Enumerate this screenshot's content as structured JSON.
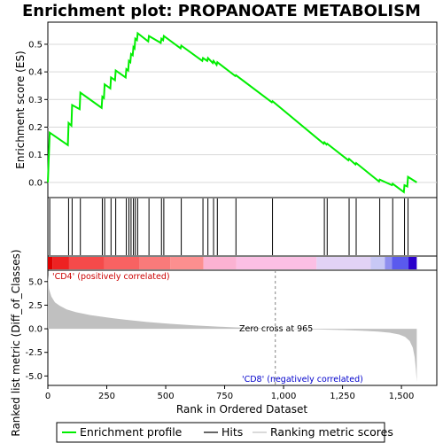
{
  "title": "Enrichment plot: PROPANOATE METABOLISM",
  "colors": {
    "enrichment_line": "#00ee00",
    "hit_line": "#000000",
    "metric_fill": "#c0c0c0",
    "pos_label": "#cc0000",
    "neg_label": "#0000cc",
    "zero_cross_line": "#808080"
  },
  "chart_data": [
    {
      "type": "line",
      "name": "enrichment-profile",
      "ylabel": "Enrichment score (ES)",
      "xlim": [
        0,
        1650
      ],
      "ylim": [
        -0.055,
        0.58
      ],
      "yticks": [
        0.0,
        0.1,
        0.2,
        0.3,
        0.4,
        0.5
      ],
      "ytick_labels": [
        "0.0",
        "0.1",
        "0.2",
        "0.3",
        "0.4",
        "0.5"
      ],
      "grid": true,
      "points": [
        [
          0,
          0.0
        ],
        [
          8,
          0.18
        ],
        [
          85,
          0.135
        ],
        [
          88,
          0.215
        ],
        [
          100,
          0.205
        ],
        [
          103,
          0.28
        ],
        [
          135,
          0.265
        ],
        [
          138,
          0.325
        ],
        [
          228,
          0.27
        ],
        [
          231,
          0.31
        ],
        [
          238,
          0.305
        ],
        [
          241,
          0.355
        ],
        [
          265,
          0.34
        ],
        [
          268,
          0.38
        ],
        [
          285,
          0.37
        ],
        [
          288,
          0.405
        ],
        [
          330,
          0.38
        ],
        [
          333,
          0.41
        ],
        [
          341,
          0.405
        ],
        [
          344,
          0.44
        ],
        [
          350,
          0.435
        ],
        [
          353,
          0.465
        ],
        [
          360,
          0.46
        ],
        [
          363,
          0.49
        ],
        [
          368,
          0.485
        ],
        [
          371,
          0.52
        ],
        [
          378,
          0.515
        ],
        [
          381,
          0.54
        ],
        [
          426,
          0.51
        ],
        [
          429,
          0.53
        ],
        [
          479,
          0.505
        ],
        [
          482,
          0.52
        ],
        [
          489,
          0.515
        ],
        [
          492,
          0.53
        ],
        [
          563,
          0.485
        ],
        [
          566,
          0.495
        ],
        [
          655,
          0.44
        ],
        [
          658,
          0.45
        ],
        [
          676,
          0.44
        ],
        [
          679,
          0.45
        ],
        [
          700,
          0.432
        ],
        [
          703,
          0.44
        ],
        [
          716,
          0.425
        ],
        [
          719,
          0.435
        ],
        [
          795,
          0.385
        ],
        [
          798,
          0.388
        ],
        [
          950,
          0.29
        ],
        [
          953,
          0.294
        ],
        [
          1170,
          0.14
        ],
        [
          1173,
          0.145
        ],
        [
          1182,
          0.137
        ],
        [
          1185,
          0.14
        ],
        [
          1275,
          0.08
        ],
        [
          1278,
          0.085
        ],
        [
          1305,
          0.065
        ],
        [
          1308,
          0.07
        ],
        [
          1405,
          0.003
        ],
        [
          1408,
          0.01
        ],
        [
          1460,
          -0.01
        ],
        [
          1463,
          -0.005
        ],
        [
          1510,
          -0.035
        ],
        [
          1513,
          -0.01
        ],
        [
          1525,
          -0.015
        ],
        [
          1528,
          0.02
        ],
        [
          1565,
          0.0
        ]
      ]
    },
    {
      "type": "hits",
      "name": "gene-hits",
      "xlim": [
        0,
        1650
      ],
      "x": [
        8,
        88,
        103,
        138,
        231,
        241,
        268,
        288,
        333,
        344,
        353,
        363,
        371,
        381,
        429,
        482,
        492,
        566,
        658,
        679,
        703,
        719,
        798,
        953,
        1173,
        1185,
        1278,
        1308,
        1408,
        1463,
        1513,
        1528
      ]
    },
    {
      "type": "heatmap",
      "name": "ranking-color-bar",
      "xlim": [
        0,
        1650
      ],
      "segments": [
        {
          "start": 0,
          "end": 20,
          "color": "#dd0000"
        },
        {
          "start": 20,
          "end": 90,
          "color": "#ee2222"
        },
        {
          "start": 90,
          "end": 240,
          "color": "#f54a4a"
        },
        {
          "start": 240,
          "end": 390,
          "color": "#f86262"
        },
        {
          "start": 390,
          "end": 520,
          "color": "#fa7a7a"
        },
        {
          "start": 520,
          "end": 660,
          "color": "#fc8f8f"
        },
        {
          "start": 660,
          "end": 800,
          "color": "#fbb2d2"
        },
        {
          "start": 800,
          "end": 1140,
          "color": "#fbbfe4"
        },
        {
          "start": 1140,
          "end": 1370,
          "color": "#e2d2f5"
        },
        {
          "start": 1370,
          "end": 1430,
          "color": "#c8c8f5"
        },
        {
          "start": 1430,
          "end": 1460,
          "color": "#8f8fef"
        },
        {
          "start": 1460,
          "end": 1530,
          "color": "#5a5aee"
        },
        {
          "start": 1530,
          "end": 1565,
          "color": "#2a00cc"
        }
      ]
    },
    {
      "type": "area",
      "name": "ranked-list-metric",
      "xlabel": "Rank in Ordered Dataset",
      "ylabel": "Ranked list metric (Diff_of_Classes)",
      "xlim": [
        0,
        1650
      ],
      "ylim": [
        -6.0,
        6.2
      ],
      "xticks": [
        0,
        250,
        500,
        750,
        1000,
        1250,
        1500
      ],
      "xtick_labels": [
        "0",
        "250",
        "500",
        "750",
        "1,000",
        "1,250",
        "1,500"
      ],
      "yticks": [
        -5.0,
        -2.5,
        0.0,
        2.5,
        5.0
      ],
      "ytick_labels": [
        "-5.0",
        "-2.5",
        "0.0",
        "2.5",
        "5.0"
      ],
      "points": [
        [
          0,
          5.7
        ],
        [
          5,
          4.2
        ],
        [
          15,
          3.4
        ],
        [
          30,
          2.8
        ],
        [
          50,
          2.45
        ],
        [
          80,
          2.05
        ],
        [
          120,
          1.75
        ],
        [
          180,
          1.45
        ],
        [
          250,
          1.2
        ],
        [
          330,
          0.95
        ],
        [
          420,
          0.72
        ],
        [
          520,
          0.52
        ],
        [
          620,
          0.36
        ],
        [
          720,
          0.23
        ],
        [
          820,
          0.12
        ],
        [
          900,
          0.05
        ],
        [
          965,
          0.0
        ],
        [
          1050,
          -0.04
        ],
        [
          1150,
          -0.08
        ],
        [
          1250,
          -0.13
        ],
        [
          1330,
          -0.2
        ],
        [
          1400,
          -0.3
        ],
        [
          1450,
          -0.42
        ],
        [
          1490,
          -0.6
        ],
        [
          1515,
          -0.85
        ],
        [
          1535,
          -1.3
        ],
        [
          1548,
          -2.0
        ],
        [
          1556,
          -3.0
        ],
        [
          1561,
          -4.2
        ],
        [
          1565,
          -5.6
        ],
        [
          1565,
          0.0
        ]
      ],
      "zero_cross": 965,
      "annotations": {
        "pos": "'CD4' (positively correlated)",
        "neg": "'CD8' (negatively correlated)",
        "zero_cross": "Zero cross at 965"
      }
    }
  ],
  "legend": {
    "items": [
      "Enrichment profile",
      "Hits",
      "Ranking metric scores"
    ],
    "placement": "bottom"
  }
}
